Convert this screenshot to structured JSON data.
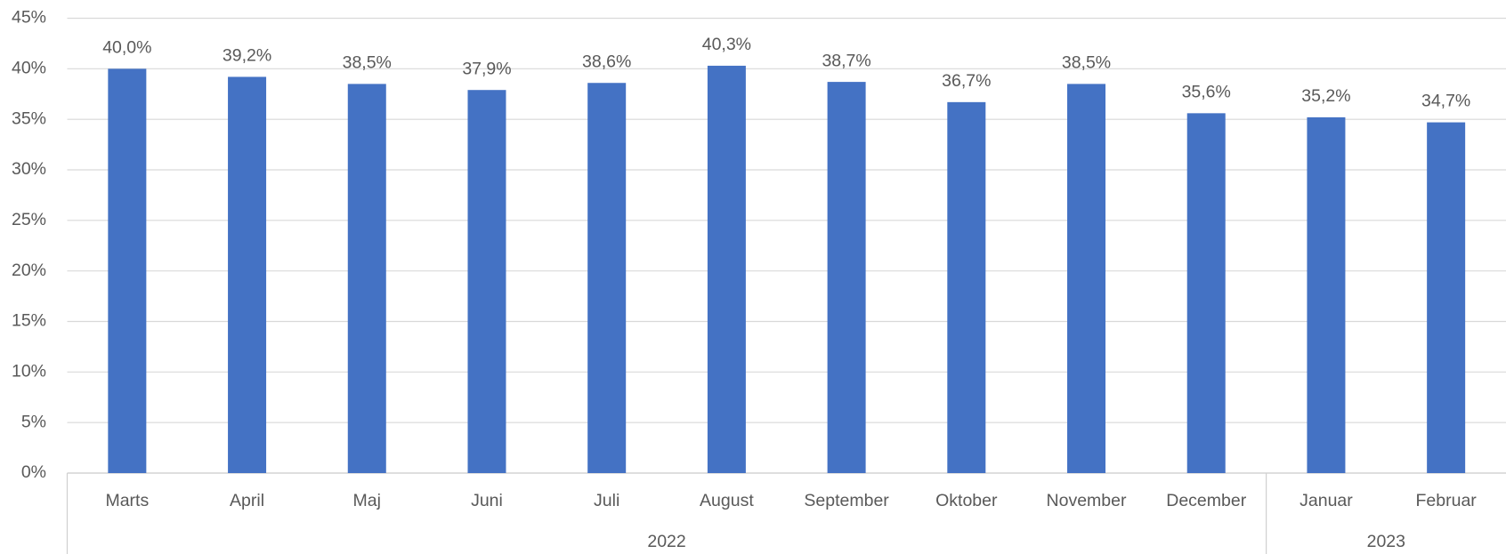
{
  "chart_data": {
    "type": "bar",
    "groups": [
      {
        "label": "2022",
        "categories": [
          "Marts",
          "April",
          "Maj",
          "Juni",
          "Juli",
          "August",
          "September",
          "Oktober",
          "November",
          "December"
        ]
      },
      {
        "label": "2023",
        "categories": [
          "Januar",
          "Februar"
        ]
      }
    ],
    "values": [
      40.0,
      39.2,
      38.5,
      37.9,
      38.6,
      40.3,
      38.7,
      36.7,
      38.5,
      35.6,
      35.2,
      34.7
    ],
    "value_labels": [
      "40,0%",
      "39,2%",
      "38,5%",
      "37,9%",
      "38,6%",
      "40,3%",
      "38,7%",
      "36,7%",
      "38,5%",
      "35,6%",
      "35,2%",
      "34,7%"
    ],
    "color": "#4472c4",
    "ylim": [
      0,
      45
    ],
    "yticks": [
      {
        "value": 0,
        "label": "0%"
      },
      {
        "value": 5,
        "label": "5%"
      },
      {
        "value": 10,
        "label": "10%"
      },
      {
        "value": 15,
        "label": "15%"
      },
      {
        "value": 20,
        "label": "20%"
      },
      {
        "value": 25,
        "label": "25%"
      },
      {
        "value": 30,
        "label": "30%"
      },
      {
        "value": 35,
        "label": "35%"
      },
      {
        "value": 40,
        "label": "40%"
      },
      {
        "value": 45,
        "label": "45%"
      }
    ],
    "grid": true
  }
}
